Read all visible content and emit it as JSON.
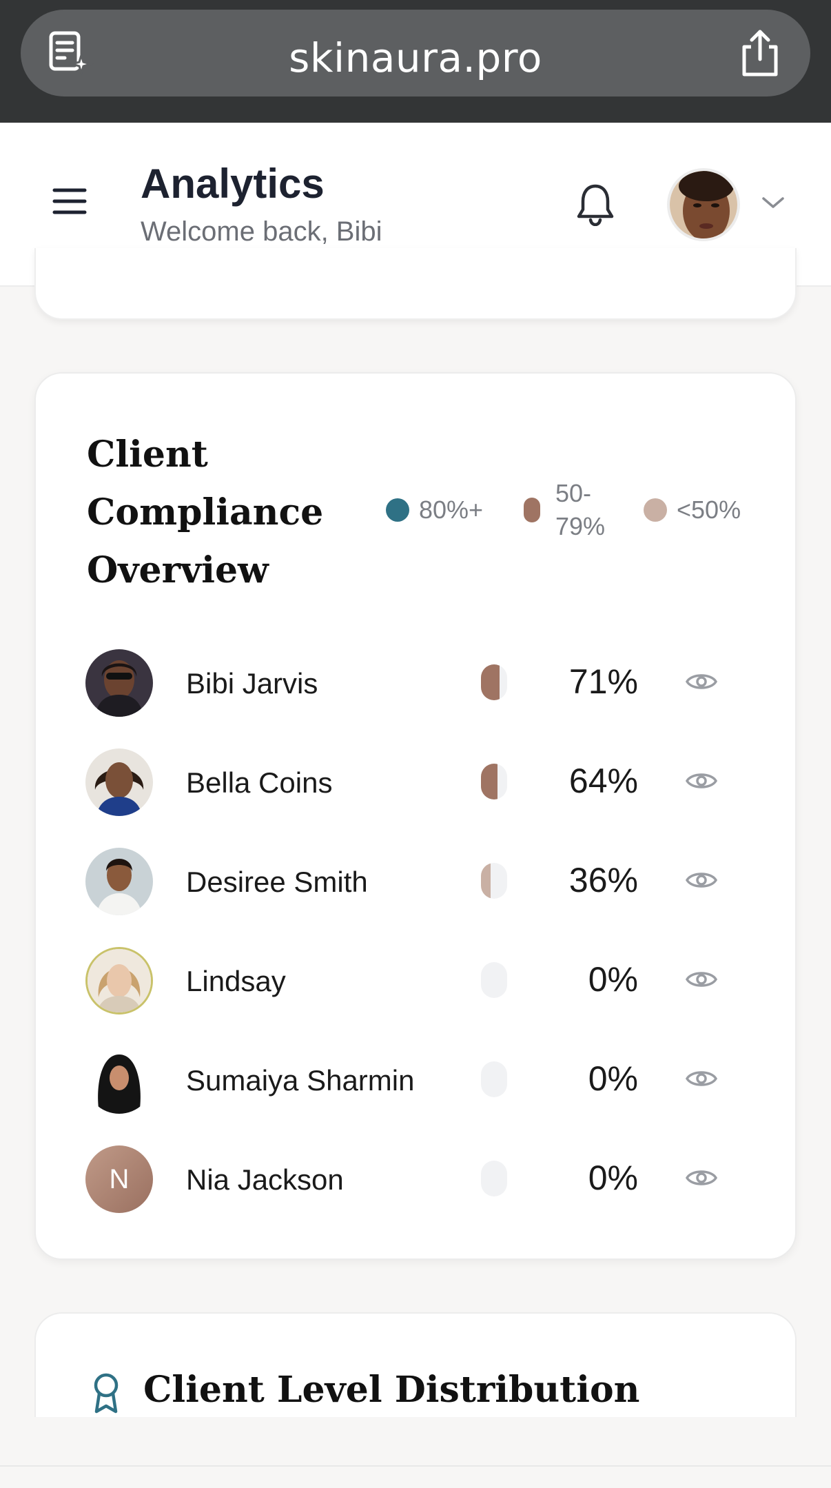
{
  "browser": {
    "url": "skinaura.pro"
  },
  "header": {
    "title": "Analytics",
    "subtitle": "Welcome back, Bibi"
  },
  "compliance": {
    "title": "Client Compliance Overview",
    "legend": [
      {
        "label": "80%+",
        "color": "#2f7185"
      },
      {
        "label": "50-79%",
        "color": "#9f7463"
      },
      {
        "label": "<50%",
        "color": "#c9b0a4"
      }
    ],
    "clients": [
      {
        "name": "Bibi Jarvis",
        "percent": "71%",
        "score": 0.71
      },
      {
        "name": "Bella Coins",
        "percent": "64%",
        "score": 0.64
      },
      {
        "name": "Desiree Smith",
        "percent": "36%",
        "score": 0.36
      },
      {
        "name": "Lindsay",
        "percent": "0%",
        "score": 0
      },
      {
        "name": "Sumaiya Sharmin",
        "percent": "0%",
        "score": 0
      },
      {
        "name": "Nia Jackson",
        "percent": "0%",
        "score": 0,
        "initial": "N"
      }
    ]
  },
  "distribution": {
    "title": "Client Level Distribution"
  }
}
